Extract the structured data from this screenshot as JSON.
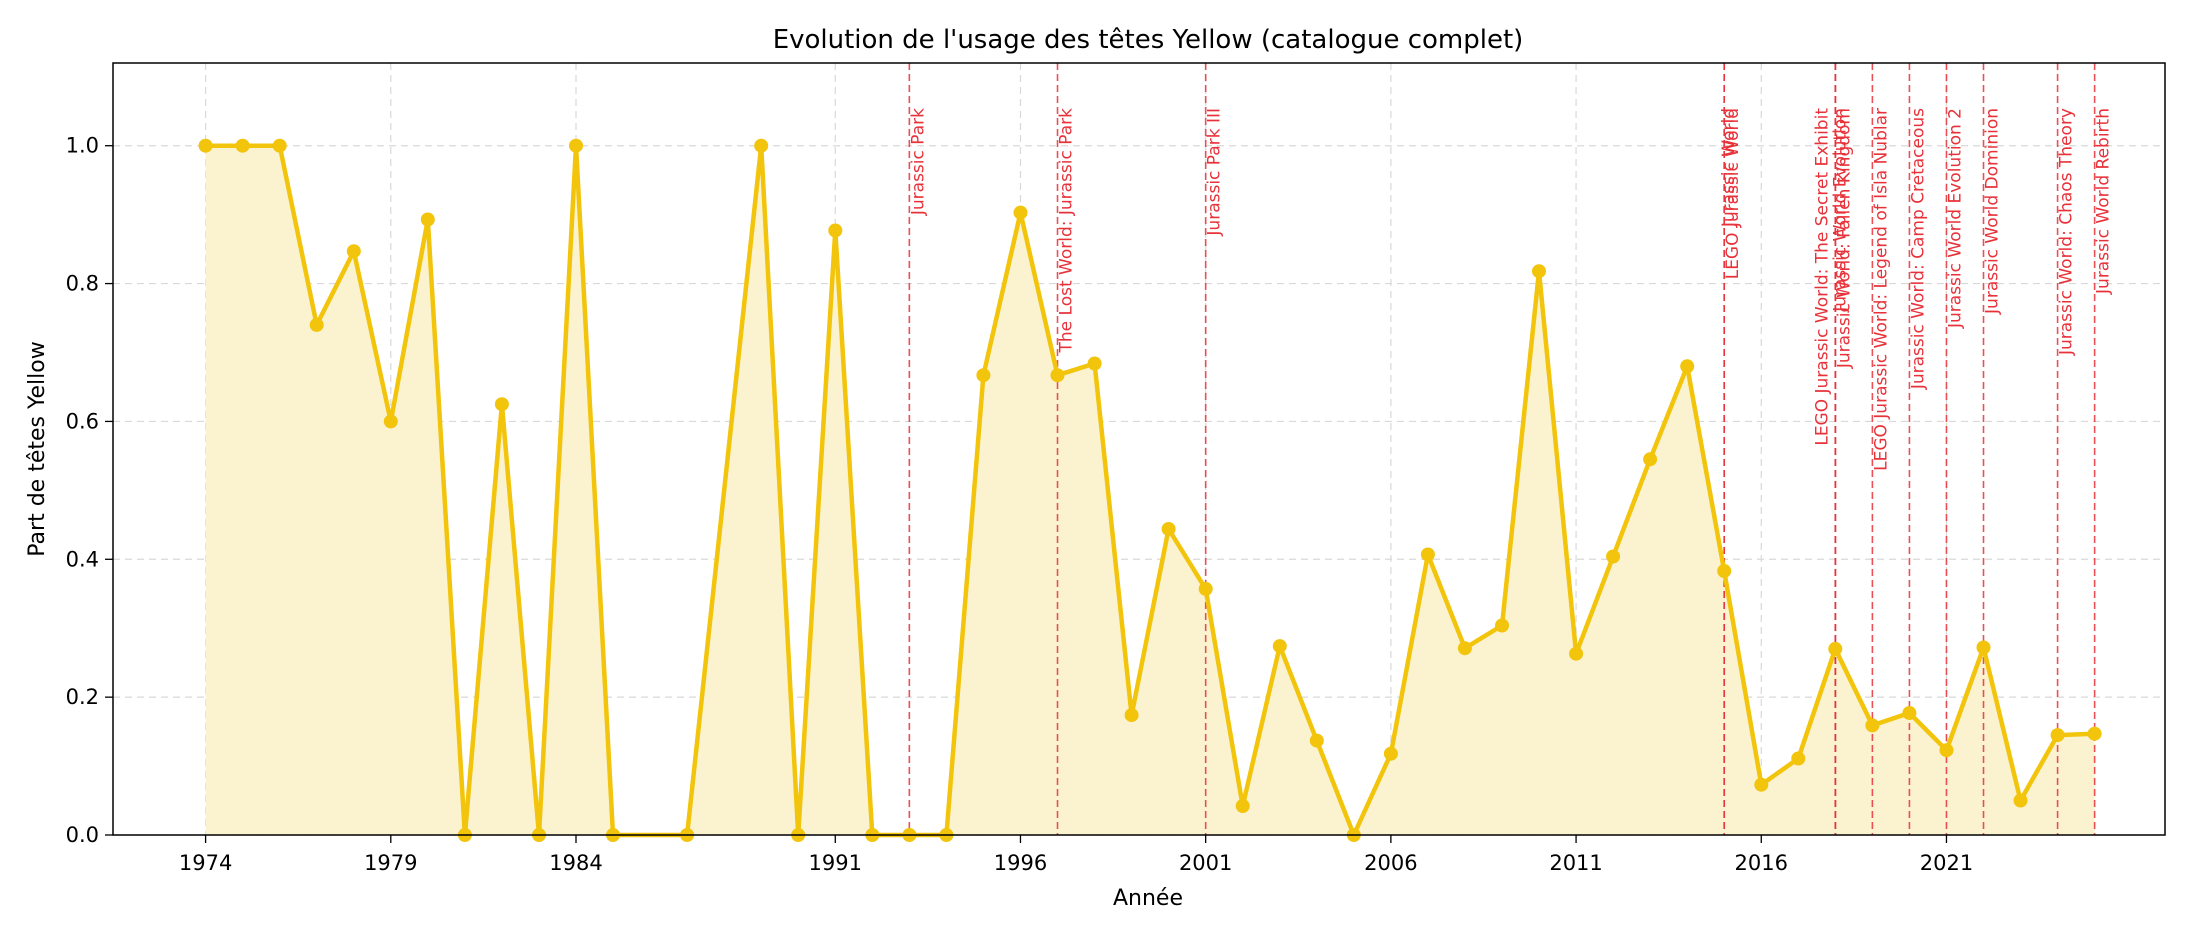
{
  "chart_data": {
    "type": "line",
    "title": "Evolution de l'usage des têtes Yellow (catalogue complet)",
    "xlabel": "Année",
    "ylabel": "Part de têtes Yellow",
    "xlim": [
      1971.5,
      2026.9
    ],
    "ylim": [
      0.0,
      1.12
    ],
    "x_ticks": [
      1974,
      1979,
      1984,
      1991,
      1996,
      2001,
      2006,
      2011,
      2016,
      2021
    ],
    "y_ticks": [
      "0.0",
      "0.2",
      "0.4",
      "0.6",
      "0.8",
      "1.0"
    ],
    "y_tick_values": [
      0.0,
      0.2,
      0.4,
      0.6,
      0.8,
      1.0
    ],
    "grid": true,
    "line_color": "#f2c40c",
    "fill_color": "#fbf3d0",
    "event_color": "#e8323a",
    "series": [
      {
        "x": [
          1974,
          1975,
          1976,
          1977,
          1978,
          1979,
          1980,
          1981,
          1982,
          1983,
          1984,
          1985,
          1987,
          1989,
          1990,
          1991,
          1992,
          1993,
          1994,
          1995,
          1996,
          1997,
          1998,
          1999,
          2000,
          2001,
          2002,
          2003,
          2004,
          2005,
          2006,
          2007,
          2008,
          2009,
          2010,
          2011,
          2012,
          2013,
          2014,
          2015,
          2016,
          2017,
          2018,
          2019,
          2020,
          2021,
          2022,
          2023,
          2024,
          2025
        ],
        "y": [
          1.0,
          1.0,
          1.0,
          0.74,
          0.847,
          0.6,
          0.893,
          0.0,
          0.625,
          0.0,
          1.0,
          0.0,
          0.0,
          1.0,
          0.0,
          0.877,
          0.0,
          0.0,
          0.0,
          0.667,
          0.903,
          0.667,
          0.684,
          0.174,
          0.444,
          0.357,
          0.042,
          0.274,
          0.137,
          0.0,
          0.118,
          0.407,
          0.271,
          0.304,
          0.818,
          0.263,
          0.404,
          0.545,
          0.68,
          0.383,
          0.073,
          0.111,
          0.27,
          0.159,
          0.177,
          0.123,
          0.272,
          0.05,
          0.145,
          0.147
        ]
      }
    ],
    "events": [
      {
        "x": 1993,
        "label": "Jurassic Park"
      },
      {
        "x": 1997,
        "label": "The Lost World: Jurassic Park"
      },
      {
        "x": 2001,
        "label": "Jurassic Park III"
      },
      {
        "x": 2015,
        "label": "LEGO Jurassic World"
      },
      {
        "x": 2015,
        "label": "Jurassic World"
      },
      {
        "x": 2018,
        "label": "Jurassic World: Fallen Kingdom"
      },
      {
        "x": 2018,
        "label": "Jurassic World Evolution"
      },
      {
        "x": 2018,
        "label": "LEGO Jurassic World: The Secret Exhibit"
      },
      {
        "x": 2019,
        "label": "LEGO Jurassic World: Legend of Isla Nublar"
      },
      {
        "x": 2020,
        "label": "Jurassic World: Camp Cretaceous"
      },
      {
        "x": 2021,
        "label": "Jurassic World Evolution 2"
      },
      {
        "x": 2022,
        "label": "Jurassic World Dominion"
      },
      {
        "x": 2024,
        "label": "Jurassic World: Chaos Theory"
      },
      {
        "x": 2025,
        "label": "Jurassic World Rebirth"
      }
    ]
  }
}
